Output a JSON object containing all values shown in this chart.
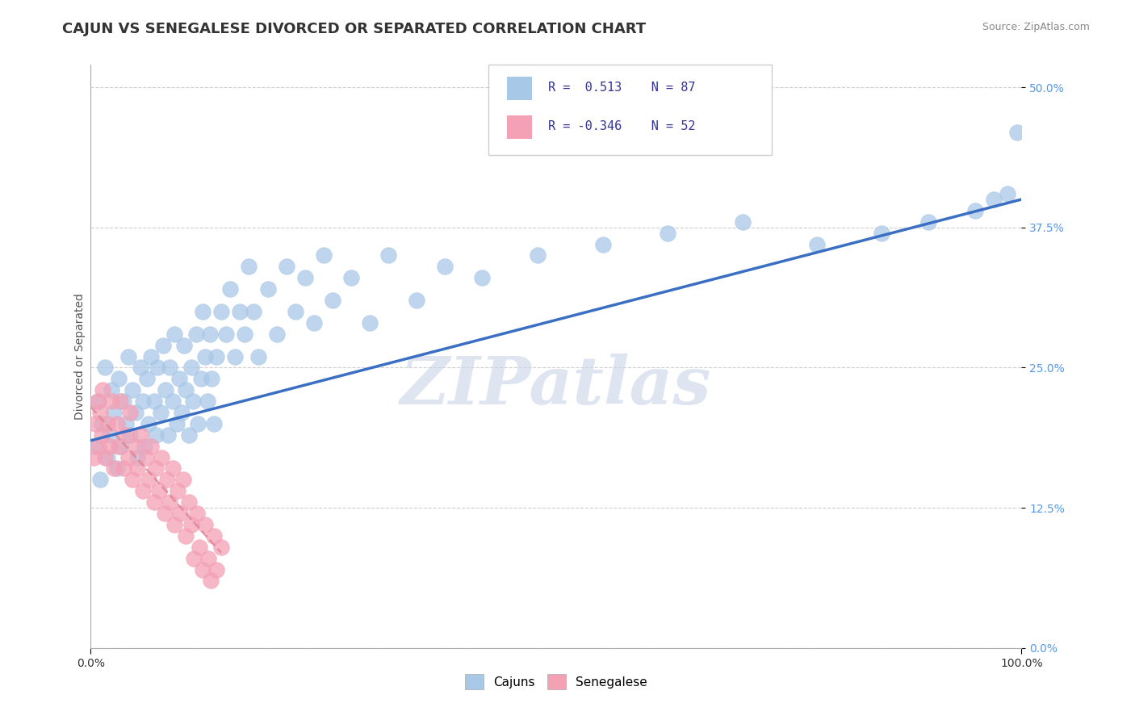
{
  "title": "CAJUN VS SENEGALESE DIVORCED OR SEPARATED CORRELATION CHART",
  "source_text": "Source: ZipAtlas.com",
  "ylabel": "Divorced or Separated",
  "xlim": [
    0.0,
    100.0
  ],
  "ylim": [
    0.0,
    52.0
  ],
  "ytick_labels": [
    "0.0%",
    "12.5%",
    "25.0%",
    "37.5%",
    "50.0%"
  ],
  "ytick_values": [
    0.0,
    12.5,
    25.0,
    37.5,
    50.0
  ],
  "xtick_labels": [
    "0.0%",
    "100.0%"
  ],
  "xtick_values": [
    0.0,
    100.0
  ],
  "cajun_color": "#A8C8E8",
  "senegalese_color": "#F4A0B5",
  "cajun_line_color": "#3A6FC4",
  "senegalese_line_color": "#E08898",
  "legend_R1": "R =  0.513   N = 87",
  "legend_R2": "R = -0.346   N = 52",
  "watermark": "ZIPatlas",
  "background_color": "#FFFFFF",
  "grid_color": "#BBBBBB",
  "cajun_scatter_x": [
    0.5,
    0.8,
    1.0,
    1.2,
    1.5,
    1.8,
    2.0,
    2.2,
    2.5,
    2.8,
    3.0,
    3.2,
    3.5,
    3.8,
    4.0,
    4.2,
    4.5,
    4.8,
    5.0,
    5.3,
    5.6,
    5.8,
    6.0,
    6.2,
    6.5,
    6.8,
    7.0,
    7.2,
    7.5,
    7.8,
    8.0,
    8.3,
    8.5,
    8.8,
    9.0,
    9.2,
    9.5,
    9.8,
    10.0,
    10.2,
    10.5,
    10.8,
    11.0,
    11.3,
    11.5,
    11.8,
    12.0,
    12.3,
    12.5,
    12.8,
    13.0,
    13.2,
    13.5,
    14.0,
    14.5,
    15.0,
    15.5,
    16.0,
    16.5,
    17.0,
    17.5,
    18.0,
    19.0,
    20.0,
    21.0,
    22.0,
    23.0,
    24.0,
    25.0,
    26.0,
    28.0,
    30.0,
    32.0,
    35.0,
    38.0,
    42.0,
    48.0,
    55.0,
    62.0,
    70.0,
    78.0,
    85.0,
    90.0,
    95.0,
    97.0,
    98.5,
    99.5
  ],
  "cajun_scatter_y": [
    18.0,
    22.0,
    15.0,
    20.0,
    25.0,
    17.0,
    19.0,
    23.0,
    21.0,
    16.0,
    24.0,
    18.0,
    22.0,
    20.0,
    26.0,
    19.0,
    23.0,
    21.0,
    17.0,
    25.0,
    22.0,
    18.0,
    24.0,
    20.0,
    26.0,
    22.0,
    19.0,
    25.0,
    21.0,
    27.0,
    23.0,
    19.0,
    25.0,
    22.0,
    28.0,
    20.0,
    24.0,
    21.0,
    27.0,
    23.0,
    19.0,
    25.0,
    22.0,
    28.0,
    20.0,
    24.0,
    30.0,
    26.0,
    22.0,
    28.0,
    24.0,
    20.0,
    26.0,
    30.0,
    28.0,
    32.0,
    26.0,
    30.0,
    28.0,
    34.0,
    30.0,
    26.0,
    32.0,
    28.0,
    34.0,
    30.0,
    33.0,
    29.0,
    35.0,
    31.0,
    33.0,
    29.0,
    35.0,
    31.0,
    34.0,
    33.0,
    35.0,
    36.0,
    37.0,
    38.0,
    36.0,
    37.0,
    38.0,
    39.0,
    40.0,
    40.5,
    46.0
  ],
  "senegalese_scatter_x": [
    0.3,
    0.5,
    0.7,
    0.8,
    1.0,
    1.2,
    1.3,
    1.5,
    1.8,
    2.0,
    2.2,
    2.5,
    2.8,
    3.0,
    3.2,
    3.5,
    3.8,
    4.0,
    4.2,
    4.5,
    4.8,
    5.0,
    5.3,
    5.6,
    5.9,
    6.2,
    6.5,
    6.8,
    7.0,
    7.3,
    7.6,
    7.9,
    8.2,
    8.5,
    8.8,
    9.0,
    9.3,
    9.6,
    9.9,
    10.2,
    10.5,
    10.8,
    11.1,
    11.4,
    11.7,
    12.0,
    12.3,
    12.6,
    12.9,
    13.2,
    13.5,
    14.0
  ],
  "senegalese_scatter_y": [
    17.0,
    20.0,
    22.0,
    18.0,
    21.0,
    19.0,
    23.0,
    17.0,
    20.0,
    18.0,
    22.0,
    16.0,
    20.0,
    18.0,
    22.0,
    16.0,
    19.0,
    17.0,
    21.0,
    15.0,
    18.0,
    16.0,
    19.0,
    14.0,
    17.0,
    15.0,
    18.0,
    13.0,
    16.0,
    14.0,
    17.0,
    12.0,
    15.0,
    13.0,
    16.0,
    11.0,
    14.0,
    12.0,
    15.0,
    10.0,
    13.0,
    11.0,
    8.0,
    12.0,
    9.0,
    7.0,
    11.0,
    8.0,
    6.0,
    10.0,
    7.0,
    9.0
  ],
  "cajun_line_x0": 0.0,
  "cajun_line_y0": 18.5,
  "cajun_line_x1": 100.0,
  "cajun_line_y1": 40.0,
  "senegalese_line_x0": 0.0,
  "senegalese_line_y0": 21.5,
  "senegalese_line_x1": 14.0,
  "senegalese_line_y1": 8.5,
  "title_fontsize": 13,
  "axis_label_fontsize": 10,
  "tick_fontsize": 10,
  "legend_fontsize": 11,
  "watermark_fontsize": 60,
  "watermark_color": "#C8D5E8",
  "watermark_alpha": 0.6
}
